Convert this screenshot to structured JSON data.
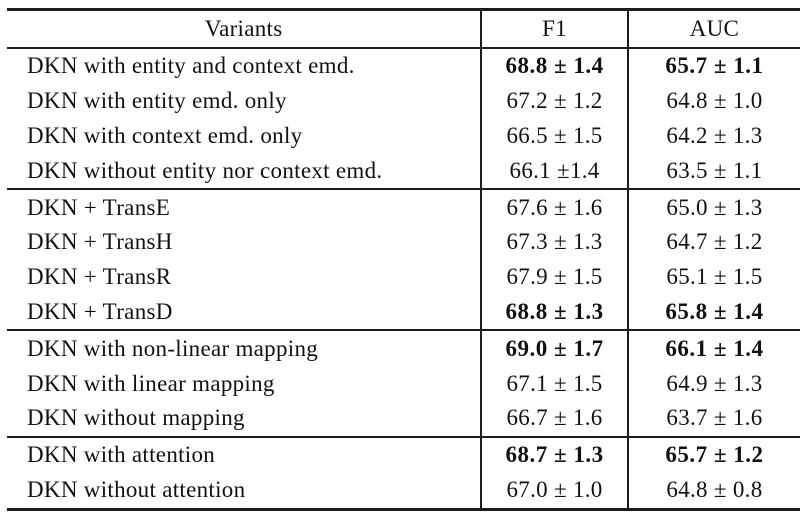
{
  "page": {
    "background": "#ffffff",
    "text_color": "#111111",
    "border_color": "#1c1c1c"
  },
  "table": {
    "columns": [
      "Variants",
      "F1",
      "AUC"
    ],
    "groups": [
      {
        "rows": [
          {
            "variant": "DKN with entity and context emd.",
            "f1": "68.8 ± 1.4",
            "auc": "65.7 ± 1.1",
            "bold": true
          },
          {
            "variant": "DKN with entity emd. only",
            "f1": "67.2 ± 1.2",
            "auc": "64.8 ± 1.0",
            "bold": false
          },
          {
            "variant": "DKN with context emd. only",
            "f1": "66.5 ± 1.5",
            "auc": "64.2 ± 1.3",
            "bold": false
          },
          {
            "variant": "DKN without entity nor context emd.",
            "f1": "66.1 ±1.4",
            "auc": "63.5 ± 1.1",
            "bold": false
          }
        ]
      },
      {
        "rows": [
          {
            "variant": "DKN + TransE",
            "f1": "67.6 ± 1.6",
            "auc": "65.0 ± 1.3",
            "bold": false
          },
          {
            "variant": "DKN + TransH",
            "f1": "67.3 ± 1.3",
            "auc": "64.7 ± 1.2",
            "bold": false
          },
          {
            "variant": "DKN + TransR",
            "f1": "67.9 ± 1.5",
            "auc": "65.1 ± 1.5",
            "bold": false
          },
          {
            "variant": "DKN + TransD",
            "f1": "68.8 ± 1.3",
            "auc": "65.8 ± 1.4",
            "bold": true
          }
        ]
      },
      {
        "rows": [
          {
            "variant": "DKN with non-linear mapping",
            "f1": "69.0 ± 1.7",
            "auc": "66.1 ± 1.4",
            "bold": true
          },
          {
            "variant": "DKN with linear mapping",
            "f1": "67.1 ± 1.5",
            "auc": "64.9 ± 1.3",
            "bold": false
          },
          {
            "variant": "DKN without mapping",
            "f1": "66.7 ± 1.6",
            "auc": "63.7 ± 1.6",
            "bold": false
          }
        ]
      },
      {
        "rows": [
          {
            "variant": "DKN with attention",
            "f1": "68.7 ± 1.3",
            "auc": "65.7 ± 1.2",
            "bold": true
          },
          {
            "variant": "DKN without attention",
            "f1": "67.0 ± 1.0",
            "auc": "64.8 ± 0.8",
            "bold": false
          }
        ]
      }
    ]
  }
}
